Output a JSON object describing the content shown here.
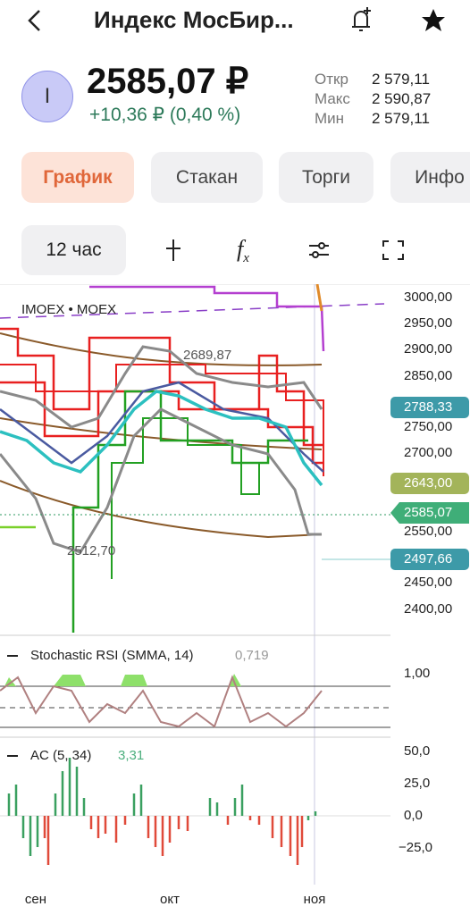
{
  "header": {
    "title": "Индекс МосБир...",
    "icon_letter": "I",
    "price": "2585,07 ₽",
    "change": "+10,36 ₽ (0,40 %)",
    "stats": [
      {
        "label": "Откр",
        "value": "2 579,11"
      },
      {
        "label": "Макс",
        "value": "2 590,87"
      },
      {
        "label": "Мин",
        "value": "2 579,11"
      }
    ]
  },
  "tabs": [
    "График",
    "Стакан",
    "Торги",
    "Инфо"
  ],
  "toolbar": {
    "interval": "12 час",
    "function_icon": [
      "f",
      "x"
    ]
  },
  "chart": {
    "symbol": "IMOEX • MOEX",
    "price_axis": [
      "3000,00",
      "2950,00",
      "2900,00",
      "2850,00",
      "2750,00",
      "2700,00",
      "2550,00",
      "2450,00",
      "2400,00"
    ],
    "badges": [
      "2788,33",
      "2643,00",
      "2585,07",
      "2497,66"
    ],
    "annotations": [
      "2689,87",
      "2512,70"
    ],
    "stoch": {
      "name": "Stochastic RSI (SMMA, 14)",
      "value": "0,719",
      "axis": [
        "1,00"
      ]
    },
    "ac": {
      "name": "AC (5, 34)",
      "value": "3,31",
      "axis": [
        "50,0",
        "25,0",
        "0,0",
        "−25,0"
      ]
    },
    "x_labels": [
      "сен",
      "окт",
      "ноя"
    ]
  }
}
